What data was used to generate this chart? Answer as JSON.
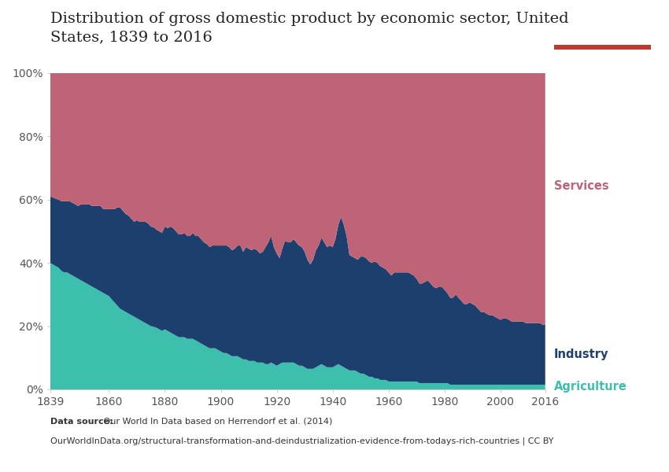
{
  "title": "Distribution of gross domestic product by economic sector, United\nStates, 1839 to 2016",
  "title_fontsize": 14,
  "datasource_bold": "Data source:",
  "datasource_line1": " Our World In Data based on Herrendorf et al. (2014)",
  "datasource_line2": "OurWorldInData.org/structural-transformation-and-deindustrialization-evidence-from-todays-rich-countries | CC BY",
  "colors": {
    "agriculture": "#3dbfad",
    "industry": "#1d3f6e",
    "services": "#bf6477",
    "background": "#ffffff"
  },
  "label_colors": {
    "agriculture": "#3dbfad",
    "industry": "#1d3f6e",
    "services": "#bf6477"
  },
  "years": [
    1839,
    1840,
    1841,
    1842,
    1843,
    1844,
    1845,
    1846,
    1847,
    1848,
    1849,
    1850,
    1851,
    1852,
    1853,
    1854,
    1855,
    1856,
    1857,
    1858,
    1859,
    1860,
    1861,
    1862,
    1863,
    1864,
    1865,
    1866,
    1867,
    1868,
    1869,
    1870,
    1871,
    1872,
    1873,
    1874,
    1875,
    1876,
    1877,
    1878,
    1879,
    1880,
    1881,
    1882,
    1883,
    1884,
    1885,
    1886,
    1887,
    1888,
    1889,
    1890,
    1891,
    1892,
    1893,
    1894,
    1895,
    1896,
    1897,
    1898,
    1899,
    1900,
    1901,
    1902,
    1903,
    1904,
    1905,
    1906,
    1907,
    1908,
    1909,
    1910,
    1911,
    1912,
    1913,
    1914,
    1915,
    1916,
    1917,
    1918,
    1919,
    1920,
    1921,
    1922,
    1923,
    1924,
    1925,
    1926,
    1927,
    1928,
    1929,
    1930,
    1931,
    1932,
    1933,
    1934,
    1935,
    1936,
    1937,
    1938,
    1939,
    1940,
    1941,
    1942,
    1943,
    1944,
    1945,
    1946,
    1947,
    1948,
    1949,
    1950,
    1951,
    1952,
    1953,
    1954,
    1955,
    1956,
    1957,
    1958,
    1959,
    1960,
    1961,
    1962,
    1963,
    1964,
    1965,
    1966,
    1967,
    1968,
    1969,
    1970,
    1971,
    1972,
    1973,
    1974,
    1975,
    1976,
    1977,
    1978,
    1979,
    1980,
    1981,
    1982,
    1983,
    1984,
    1985,
    1986,
    1987,
    1988,
    1989,
    1990,
    1991,
    1992,
    1993,
    1994,
    1995,
    1996,
    1997,
    1998,
    1999,
    2000,
    2001,
    2002,
    2003,
    2004,
    2005,
    2006,
    2007,
    2008,
    2009,
    2010,
    2011,
    2012,
    2013,
    2014,
    2015,
    2016
  ],
  "agriculture": [
    40.0,
    39.5,
    39.0,
    38.5,
    37.5,
    37.0,
    37.0,
    36.5,
    36.0,
    35.5,
    35.0,
    34.5,
    34.0,
    33.5,
    33.0,
    32.5,
    32.0,
    31.5,
    31.0,
    30.5,
    30.0,
    29.5,
    28.5,
    27.5,
    26.5,
    25.5,
    25.0,
    24.5,
    24.0,
    23.5,
    23.0,
    22.5,
    22.0,
    21.5,
    21.0,
    20.5,
    20.0,
    19.8,
    19.5,
    19.0,
    18.5,
    19.0,
    18.5,
    18.0,
    17.5,
    17.0,
    16.5,
    16.5,
    16.5,
    16.0,
    16.0,
    16.0,
    15.5,
    15.0,
    14.5,
    14.0,
    13.5,
    13.0,
    13.0,
    13.0,
    12.5,
    12.0,
    11.5,
    11.5,
    11.0,
    10.5,
    10.5,
    10.5,
    10.0,
    9.5,
    9.5,
    9.0,
    9.0,
    9.0,
    8.5,
    8.5,
    8.5,
    8.0,
    8.0,
    8.5,
    8.0,
    7.5,
    8.0,
    8.5,
    8.5,
    8.5,
    8.5,
    8.5,
    8.0,
    7.5,
    7.5,
    7.0,
    6.5,
    6.5,
    6.5,
    7.0,
    7.5,
    8.0,
    7.5,
    7.0,
    7.0,
    7.0,
    7.5,
    8.0,
    7.5,
    7.0,
    6.5,
    6.0,
    6.0,
    6.0,
    5.5,
    5.0,
    5.0,
    4.5,
    4.0,
    4.0,
    3.5,
    3.5,
    3.0,
    3.0,
    3.0,
    2.5,
    2.5,
    2.5,
    2.5,
    2.5,
    2.5,
    2.5,
    2.5,
    2.5,
    2.5,
    2.5,
    2.0,
    2.0,
    2.0,
    2.0,
    2.0,
    2.0,
    2.0,
    2.0,
    2.0,
    2.0,
    2.0,
    1.5,
    1.5,
    1.5,
    1.5,
    1.5,
    1.5,
    1.5,
    1.5,
    1.5,
    1.5,
    1.5,
    1.5,
    1.5,
    1.5,
    1.5,
    1.5,
    1.5,
    1.5,
    1.5,
    1.5,
    1.5,
    1.5,
    1.5,
    1.5,
    1.5,
    1.5,
    1.5,
    1.5,
    1.5,
    1.5,
    1.5,
    1.5,
    1.5,
    1.5,
    1.5
  ],
  "industry": [
    21.0,
    21.2,
    21.3,
    21.5,
    22.0,
    22.5,
    22.5,
    23.0,
    23.0,
    23.0,
    23.0,
    24.0,
    24.5,
    25.0,
    25.5,
    25.5,
    26.0,
    26.5,
    27.0,
    26.5,
    27.0,
    27.5,
    28.5,
    29.5,
    31.0,
    32.0,
    31.5,
    31.0,
    31.0,
    30.5,
    30.0,
    31.0,
    31.0,
    31.5,
    32.0,
    32.0,
    31.5,
    31.5,
    31.0,
    31.0,
    31.0,
    32.5,
    32.5,
    33.5,
    33.5,
    33.0,
    32.5,
    32.5,
    33.0,
    32.5,
    32.5,
    33.5,
    33.0,
    33.5,
    33.0,
    32.5,
    32.5,
    32.0,
    32.5,
    32.5,
    33.0,
    33.5,
    34.0,
    34.0,
    34.0,
    33.5,
    34.0,
    35.0,
    35.5,
    34.0,
    35.5,
    35.5,
    35.0,
    35.5,
    35.5,
    34.5,
    35.0,
    37.0,
    38.5,
    40.0,
    37.0,
    35.5,
    33.5,
    36.0,
    38.5,
    38.0,
    38.0,
    39.0,
    38.5,
    38.0,
    37.5,
    36.5,
    34.5,
    33.0,
    34.5,
    37.0,
    38.0,
    40.0,
    39.0,
    38.0,
    38.5,
    38.0,
    40.0,
    44.0,
    47.0,
    45.0,
    42.0,
    36.5,
    36.0,
    35.5,
    35.5,
    37.0,
    37.0,
    37.0,
    36.5,
    36.0,
    37.0,
    36.5,
    36.0,
    35.5,
    35.0,
    34.5,
    33.5,
    34.5,
    34.5,
    34.5,
    34.5,
    34.5,
    34.5,
    34.0,
    33.5,
    32.5,
    31.5,
    31.5,
    32.0,
    32.5,
    31.5,
    30.5,
    30.0,
    30.5,
    30.5,
    29.5,
    28.5,
    27.5,
    27.5,
    28.5,
    27.5,
    26.5,
    25.5,
    25.5,
    26.0,
    25.5,
    25.0,
    24.0,
    23.0,
    23.0,
    22.5,
    22.0,
    22.0,
    21.5,
    21.0,
    20.5,
    21.0,
    21.0,
    20.5,
    20.0,
    20.0,
    20.0,
    20.0,
    20.0,
    19.5,
    19.5,
    19.5,
    19.5,
    19.5,
    19.5,
    19.0,
    19.0
  ],
  "ytick_labels": [
    "0%",
    "20%",
    "40%",
    "60%",
    "80%",
    "100%"
  ],
  "ytick_values": [
    0,
    20,
    40,
    60,
    80,
    100
  ],
  "xtick_labels": [
    "1839",
    "1860",
    "1880",
    "1900",
    "1920",
    "1940",
    "1960",
    "1980",
    "2000",
    "2016"
  ],
  "xtick_values": [
    1839,
    1860,
    1880,
    1900,
    1920,
    1940,
    1960,
    1980,
    2000,
    2016
  ],
  "logo_bg": "#1d3256",
  "logo_red": "#c0392b",
  "logo_text_color": "#ffffff"
}
